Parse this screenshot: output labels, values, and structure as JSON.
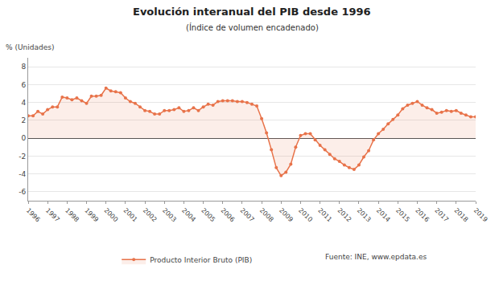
{
  "chart_data": {
    "type": "line",
    "title": "Evolución interanual del PIB desde 1996",
    "subtitle": "(Índice de volumen encadenado)",
    "y_label": "% (Unidades)",
    "annotations": [
      "Fuente: INE, www.epdata.es"
    ],
    "categories": [
      "1996",
      null,
      null,
      null,
      "1997",
      null,
      null,
      null,
      "1998",
      null,
      null,
      null,
      "1999",
      null,
      null,
      null,
      "2000",
      null,
      null,
      null,
      "2001",
      null,
      null,
      null,
      "2002",
      null,
      null,
      null,
      "2003",
      null,
      null,
      null,
      "2004",
      null,
      null,
      null,
      "2005",
      null,
      null,
      null,
      "2006",
      null,
      null,
      null,
      "2007",
      null,
      null,
      null,
      "2008",
      null,
      null,
      null,
      "2009",
      null,
      null,
      null,
      "2010",
      null,
      null,
      null,
      "2011",
      null,
      null,
      null,
      "2012",
      null,
      null,
      null,
      "2013",
      null,
      null,
      null,
      "2014",
      null,
      null,
      null,
      "2015",
      null,
      null,
      null,
      "2016",
      null,
      null,
      null,
      "2017",
      null,
      null,
      null,
      "2018",
      null,
      null,
      null,
      "2019"
    ],
    "series": [
      {
        "name": "Producto Interior Bruto (PIB)",
        "color": "#e8734a",
        "marker": "circle",
        "values": [
          2.5,
          2.5,
          3.0,
          2.7,
          3.2,
          3.5,
          3.5,
          4.6,
          4.5,
          4.3,
          4.5,
          4.2,
          3.9,
          4.7,
          4.7,
          4.8,
          5.6,
          5.3,
          5.2,
          5.1,
          4.5,
          4.1,
          3.9,
          3.5,
          3.1,
          3.0,
          2.7,
          2.7,
          3.1,
          3.1,
          3.2,
          3.4,
          3.0,
          3.1,
          3.4,
          3.1,
          3.5,
          3.8,
          3.7,
          4.1,
          4.2,
          4.2,
          4.2,
          4.1,
          4.1,
          4.0,
          3.8,
          3.6,
          2.2,
          0.6,
          -1.3,
          -3.3,
          -4.2,
          -3.8,
          -2.9,
          -1.0,
          0.3,
          0.5,
          0.5,
          -0.2,
          -0.8,
          -1.3,
          -1.8,
          -2.3,
          -2.6,
          -3.0,
          -3.3,
          -3.5,
          -3.0,
          -2.1,
          -1.4,
          -0.2,
          0.5,
          1.0,
          1.6,
          2.1,
          2.6,
          3.3,
          3.7,
          3.9,
          4.1,
          3.7,
          3.4,
          3.2,
          2.8,
          2.9,
          3.1,
          3.0,
          3.1,
          2.8,
          2.6,
          2.4,
          2.4
        ]
      }
    ],
    "ylim": [
      -7,
      9
    ],
    "yticks": [
      -6,
      -4,
      -2,
      0,
      2,
      4,
      6,
      8
    ],
    "grid": true,
    "legend": "bottom"
  }
}
